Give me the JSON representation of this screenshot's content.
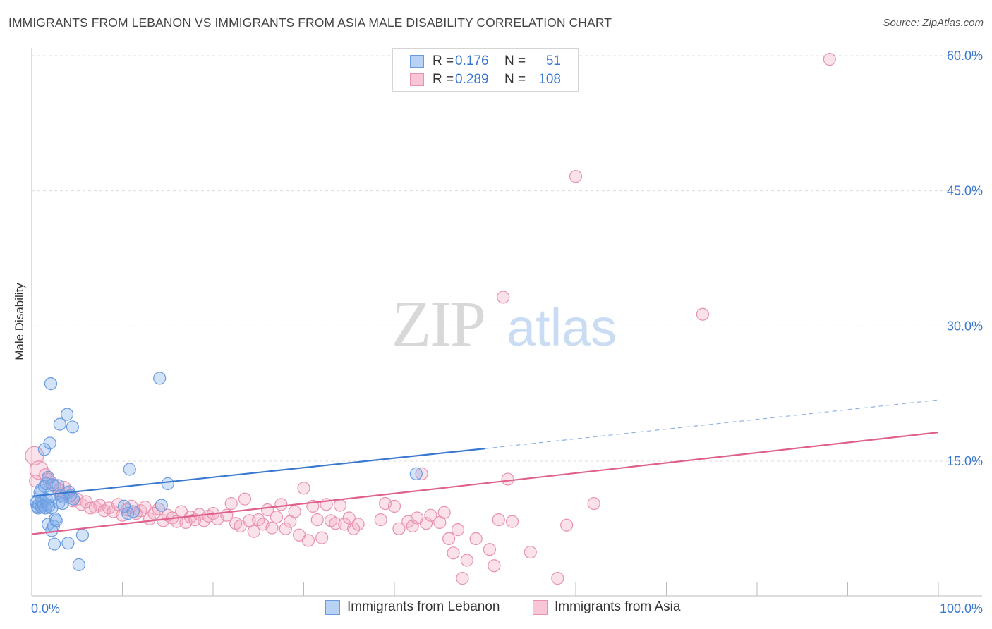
{
  "title": "IMMIGRANTS FROM LEBANON VS IMMIGRANTS FROM ASIA MALE DISABILITY CORRELATION CHART",
  "source": "Source: ZipAtlas.com",
  "watermark": {
    "zip": "ZIP",
    "atlas": "atlas"
  },
  "legend": {
    "r_label": "R =",
    "n_label": "N =",
    "series": [
      {
        "r": "0.176",
        "n": "51",
        "fill": "#b8d2f5",
        "stroke": "#6a9be0"
      },
      {
        "r": "0.289",
        "n": "108",
        "fill": "#f8c6d6",
        "stroke": "#e892ae"
      }
    ]
  },
  "bottom_legend": [
    "Immigrants from Lebanon",
    "Immigrants from Asia"
  ],
  "chart_data": {
    "type": "scatter",
    "title": "IMMIGRANTS FROM LEBANON VS IMMIGRANTS FROM ASIA MALE DISABILITY CORRELATION CHART",
    "xlabel": "",
    "ylabel": "Male Disability",
    "xlim": [
      0,
      100
    ],
    "ylim": [
      0,
      61
    ],
    "x_tick_labels": [
      "0.0%",
      "100.0%"
    ],
    "y_ticks": [
      15,
      30,
      45,
      60
    ],
    "y_tick_labels": [
      "15.0%",
      "30.0%",
      "45.0%",
      "60.0%"
    ],
    "grid": "horizontal dashed",
    "legend_position": "top-center",
    "series": [
      {
        "name": "Immigrants from Lebanon",
        "color": "#3a78d0",
        "point_fill": "rgba(130,175,235,0.35)",
        "point_stroke": "#6a9be0",
        "trend": {
          "x0": 0,
          "y0": 11.1,
          "x1": 50,
          "y1": 16.4,
          "dashed_to_x": 100,
          "dashed_to_y": 21.8
        },
        "points": [
          [
            0.5,
            10.4
          ],
          [
            0.6,
            10.0
          ],
          [
            0.7,
            9.8
          ],
          [
            0.8,
            10.2
          ],
          [
            0.9,
            11.5
          ],
          [
            1.0,
            10.6
          ],
          [
            1.0,
            11.8
          ],
          [
            1.1,
            9.9
          ],
          [
            1.2,
            10.5
          ],
          [
            1.3,
            10.1
          ],
          [
            1.4,
            12.2
          ],
          [
            1.4,
            16.3
          ],
          [
            1.5,
            9.8
          ],
          [
            1.6,
            10.8
          ],
          [
            1.6,
            12.5
          ],
          [
            1.7,
            10.2
          ],
          [
            1.8,
            8.0
          ],
          [
            1.8,
            13.2
          ],
          [
            1.9,
            10.0
          ],
          [
            2.0,
            11.0
          ],
          [
            2.0,
            17.0
          ],
          [
            2.1,
            23.6
          ],
          [
            2.2,
            7.3
          ],
          [
            2.2,
            9.8
          ],
          [
            2.3,
            12.4
          ],
          [
            2.4,
            7.8
          ],
          [
            2.5,
            5.8
          ],
          [
            2.6,
            8.6
          ],
          [
            2.7,
            8.4
          ],
          [
            2.9,
            12.3
          ],
          [
            3.0,
            10.4
          ],
          [
            3.1,
            19.1
          ],
          [
            3.2,
            11.2
          ],
          [
            3.4,
            10.3
          ],
          [
            3.5,
            11.0
          ],
          [
            3.9,
            20.2
          ],
          [
            4.0,
            5.9
          ],
          [
            4.1,
            11.6
          ],
          [
            4.3,
            11.2
          ],
          [
            4.5,
            18.8
          ],
          [
            4.6,
            10.8
          ],
          [
            5.2,
            3.5
          ],
          [
            5.6,
            6.8
          ],
          [
            10.2,
            10.0
          ],
          [
            10.6,
            9.2
          ],
          [
            10.8,
            14.1
          ],
          [
            11.2,
            9.4
          ],
          [
            14.1,
            24.2
          ],
          [
            14.3,
            10.1
          ],
          [
            15.0,
            12.5
          ],
          [
            42.4,
            13.6
          ]
        ]
      },
      {
        "name": "Immigrants from Asia",
        "color": "#e0608c",
        "point_fill": "rgba(244,170,195,0.35)",
        "point_stroke": "#e892ae",
        "trend": {
          "x0": 0,
          "y0": 6.9,
          "x1": 100,
          "y1": 18.2
        },
        "points": [
          [
            0.3,
            15.6
          ],
          [
            0.8,
            14.0
          ],
          [
            1.5,
            13.5
          ],
          [
            1.8,
            13.0
          ],
          [
            2.2,
            12.6
          ],
          [
            2.5,
            12.3
          ],
          [
            3.0,
            11.8
          ],
          [
            3.3,
            11.2
          ],
          [
            3.8,
            11.5
          ],
          [
            4.2,
            11.0
          ],
          [
            4.5,
            10.6
          ],
          [
            5.0,
            10.8
          ],
          [
            5.5,
            10.2
          ],
          [
            6.0,
            10.5
          ],
          [
            6.5,
            9.8
          ],
          [
            7.0,
            9.9
          ],
          [
            7.5,
            10.1
          ],
          [
            8.0,
            9.5
          ],
          [
            8.5,
            9.8
          ],
          [
            9.0,
            9.4
          ],
          [
            9.5,
            10.2
          ],
          [
            10.0,
            9.0
          ],
          [
            10.5,
            9.6
          ],
          [
            11.0,
            10.0
          ],
          [
            11.5,
            9.2
          ],
          [
            12.0,
            9.5
          ],
          [
            12.5,
            9.9
          ],
          [
            13.0,
            8.6
          ],
          [
            13.5,
            9.2
          ],
          [
            14.0,
            9.7
          ],
          [
            14.5,
            8.4
          ],
          [
            15.0,
            9.0
          ],
          [
            15.5,
            8.7
          ],
          [
            16.0,
            8.3
          ],
          [
            16.5,
            9.4
          ],
          [
            17.0,
            8.2
          ],
          [
            17.5,
            8.8
          ],
          [
            18.0,
            8.5
          ],
          [
            18.5,
            9.1
          ],
          [
            19.0,
            8.4
          ],
          [
            19.5,
            8.9
          ],
          [
            20.0,
            9.2
          ],
          [
            20.5,
            8.6
          ],
          [
            21.5,
            9.0
          ],
          [
            22.0,
            10.3
          ],
          [
            22.5,
            8.1
          ],
          [
            23.0,
            7.8
          ],
          [
            23.5,
            10.8
          ],
          [
            24.0,
            8.4
          ],
          [
            24.5,
            7.2
          ],
          [
            25.0,
            8.5
          ],
          [
            25.5,
            8.0
          ],
          [
            26.0,
            9.6
          ],
          [
            26.5,
            7.6
          ],
          [
            27.0,
            8.8
          ],
          [
            27.5,
            10.2
          ],
          [
            28.0,
            7.5
          ],
          [
            28.5,
            8.3
          ],
          [
            29.0,
            9.4
          ],
          [
            29.5,
            6.8
          ],
          [
            30.0,
            12.0
          ],
          [
            30.5,
            6.2
          ],
          [
            31.0,
            10.0
          ],
          [
            31.5,
            8.5
          ],
          [
            32.0,
            6.5
          ],
          [
            32.5,
            10.2
          ],
          [
            33.0,
            8.4
          ],
          [
            33.5,
            8.1
          ],
          [
            34.0,
            10.1
          ],
          [
            34.5,
            8.0
          ],
          [
            35.0,
            8.7
          ],
          [
            35.5,
            7.5
          ],
          [
            36.0,
            8.0
          ],
          [
            38.5,
            8.5
          ],
          [
            39.0,
            10.3
          ],
          [
            40.0,
            10.0
          ],
          [
            40.5,
            7.5
          ],
          [
            41.5,
            8.3
          ],
          [
            42.0,
            7.8
          ],
          [
            42.5,
            8.7
          ],
          [
            43.0,
            13.6
          ],
          [
            43.5,
            8.1
          ],
          [
            44.0,
            9.0
          ],
          [
            45.0,
            8.2
          ],
          [
            45.5,
            9.3
          ],
          [
            46.0,
            6.4
          ],
          [
            46.5,
            4.8
          ],
          [
            47.0,
            7.4
          ],
          [
            47.5,
            2.0
          ],
          [
            48.0,
            4.0
          ],
          [
            49.0,
            6.4
          ],
          [
            50.5,
            5.2
          ],
          [
            51.0,
            3.4
          ],
          [
            51.5,
            8.5
          ],
          [
            52.0,
            33.2
          ],
          [
            52.5,
            13.0
          ],
          [
            53.0,
            8.3
          ],
          [
            55.0,
            4.9
          ],
          [
            58.0,
            2.0
          ],
          [
            59.0,
            7.9
          ],
          [
            60.0,
            46.6
          ],
          [
            62.0,
            10.3
          ],
          [
            74.0,
            31.3
          ],
          [
            88.0,
            59.6
          ],
          [
            0.4,
            12.8
          ],
          [
            3.6,
            12.1
          ]
        ]
      }
    ]
  }
}
